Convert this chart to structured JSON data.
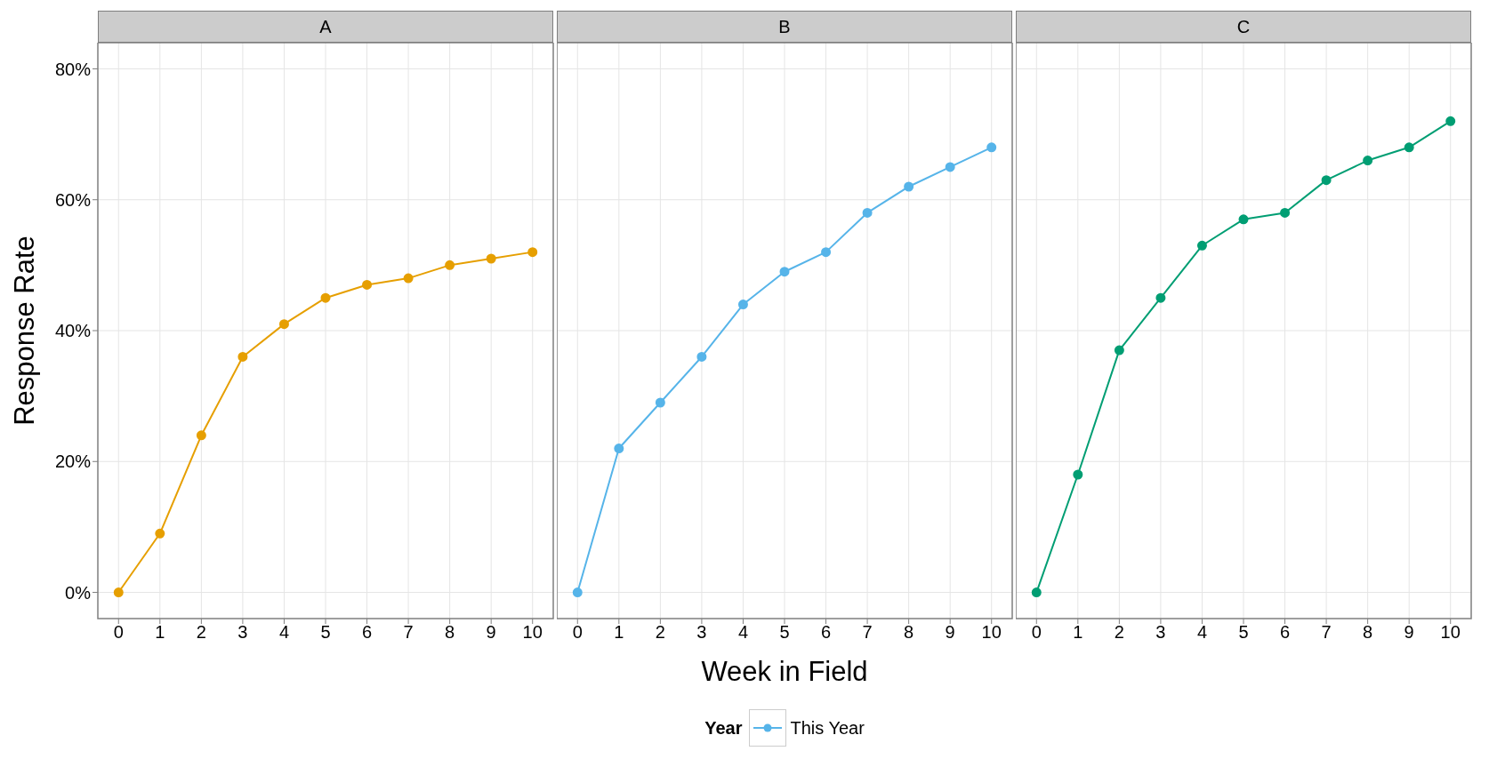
{
  "chart_data": [
    {
      "type": "line",
      "title": "A",
      "ylabel": "Response Rate",
      "x": [
        0,
        1,
        2,
        3,
        4,
        5,
        6,
        7,
        8,
        9,
        10
      ],
      "xlim": [
        -0.5,
        10.5
      ],
      "xticks": [
        0,
        1,
        2,
        3,
        4,
        5,
        6,
        7,
        8,
        9,
        10
      ],
      "ylim": [
        -4,
        84
      ],
      "yticks": [
        {
          "value": 0,
          "label": "0%"
        },
        {
          "value": 20,
          "label": "20%"
        },
        {
          "value": 40,
          "label": "40%"
        },
        {
          "value": 60,
          "label": "60%"
        },
        {
          "value": 80,
          "label": "80%"
        }
      ],
      "grid": true,
      "marker": "circle",
      "series": [
        {
          "color": "#e69f00",
          "values": [
            0,
            9,
            24,
            36,
            41,
            45,
            47,
            48,
            50,
            51,
            52
          ]
        }
      ]
    },
    {
      "type": "line",
      "title": "B",
      "xlabel": "Week in Field",
      "legend_title": "Year",
      "legend": "bottom",
      "tick_labels": "x",
      "x": [
        0,
        1,
        2,
        3,
        4,
        5,
        6,
        7,
        8,
        9,
        10
      ],
      "xlim": [
        -0.5,
        10.5
      ],
      "xticks": [
        0,
        1,
        2,
        3,
        4,
        5,
        6,
        7,
        8,
        9,
        10
      ],
      "ylim": [
        -4,
        84
      ],
      "yticks": [
        0,
        20,
        40,
        60,
        80
      ],
      "grid": true,
      "marker": "circle",
      "series": [
        {
          "name": "This Year",
          "color": "#56b4e9",
          "values": [
            0,
            22,
            29,
            36,
            44,
            49,
            52,
            58,
            62,
            65,
            68
          ]
        }
      ]
    },
    {
      "type": "line",
      "title": "C",
      "tick_labels": "x",
      "x": [
        0,
        1,
        2,
        3,
        4,
        5,
        6,
        7,
        8,
        9,
        10
      ],
      "xlim": [
        -0.5,
        10.5
      ],
      "xticks": [
        0,
        1,
        2,
        3,
        4,
        5,
        6,
        7,
        8,
        9,
        10
      ],
      "ylim": [
        -4,
        84
      ],
      "yticks": [
        0,
        20,
        40,
        60,
        80
      ],
      "grid": true,
      "marker": "circle",
      "series": [
        {
          "color": "#009e73",
          "values": [
            0,
            18,
            37,
            45,
            53,
            57,
            58,
            63,
            66,
            68,
            72
          ]
        }
      ]
    }
  ]
}
